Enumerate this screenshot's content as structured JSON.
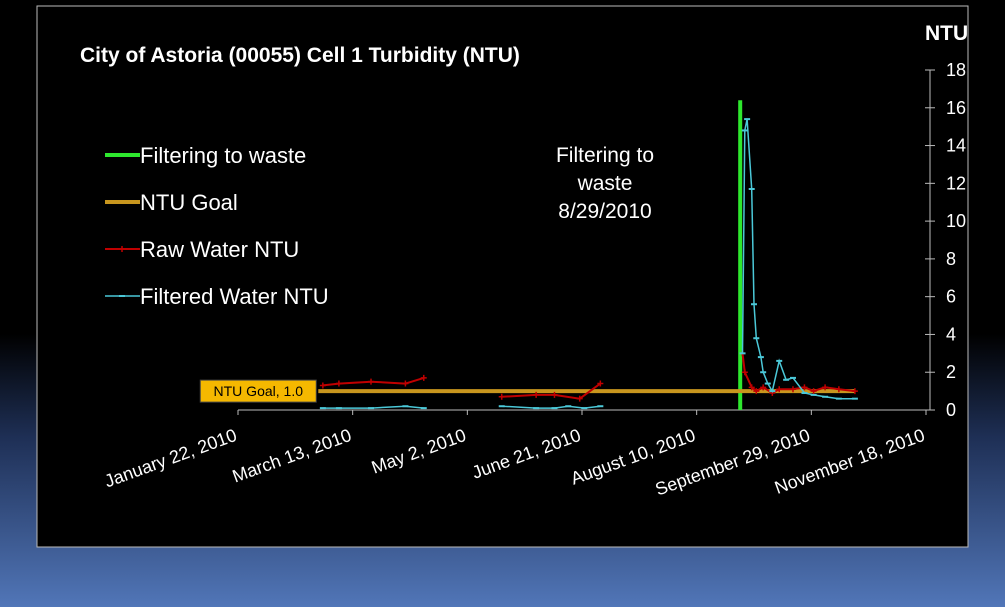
{
  "chart_data": {
    "type": "line",
    "title": "City of Astoria (00055) Cell 1 Turbidity (NTU)",
    "y_label": "NTU",
    "annotation": [
      "Filtering to",
      "waste",
      "8/29/2010"
    ],
    "xlim": [
      "2010-01-22",
      "2010-11-18"
    ],
    "xticks": [
      {
        "value": "2010-01-22",
        "label": "January 22, 2010"
      },
      {
        "value": "2010-03-13",
        "label": "March 13, 2010"
      },
      {
        "value": "2010-05-02",
        "label": "May 2, 2010"
      },
      {
        "value": "2010-06-21",
        "label": "June 21, 2010"
      },
      {
        "value": "2010-08-10",
        "label": "August 10, 2010"
      },
      {
        "value": "2010-09-29",
        "label": "September 29, 2010"
      },
      {
        "value": "2010-11-18",
        "label": "November 18, 2010"
      }
    ],
    "ylim": [
      0,
      18
    ],
    "yticks": [
      0,
      2,
      4,
      6,
      8,
      10,
      12,
      14,
      16,
      18
    ],
    "y_axis_side": "right",
    "legend": "upper left",
    "series": [
      {
        "name": "Filtering to waste",
        "color": "#2ee82e",
        "marker": "none",
        "width": 4,
        "x": [
          "2010-08-29",
          "2010-08-29"
        ],
        "values": [
          0,
          16.4
        ]
      },
      {
        "name": "NTU Goal",
        "color": "#c8961e",
        "marker": "none",
        "width": 4,
        "x": [
          "2010-02-26",
          "2010-10-18"
        ],
        "values": [
          1,
          1
        ],
        "value_labels": [
          "NTU Goal, 1.0",
          null
        ]
      },
      {
        "name": "Raw Water NTU",
        "color": "#c00000",
        "marker": "plus",
        "width": 2,
        "x": [
          "2010-02-28",
          "2010-03-07",
          "2010-03-21",
          "2010-04-05",
          "2010-04-13",
          "2010-05-01",
          "2010-05-17",
          "2010-06-01",
          "2010-06-09",
          "2010-06-20",
          "2010-06-29",
          "2010-07-20",
          "2010-08-30",
          "2010-08-31",
          "2010-09-03",
          "2010-09-05",
          "2010-09-08",
          "2010-09-12",
          "2010-09-15",
          "2010-09-21",
          "2010-09-26",
          "2010-09-30",
          "2010-10-05",
          "2010-10-11",
          "2010-10-18"
        ],
        "values": [
          1.3,
          1.4,
          1.5,
          1.4,
          1.7,
          null,
          0.7,
          0.8,
          0.8,
          0.6,
          1.4,
          null,
          3.0,
          2.0,
          1.2,
          1.0,
          1.2,
          0.9,
          1.1,
          1.1,
          1.2,
          1.0,
          1.2,
          1.1,
          1.0
        ]
      },
      {
        "name": "Filtered Water NTU",
        "color": "#4bc8d8",
        "marker": "dash",
        "width": 1.5,
        "x": [
          "2010-02-28",
          "2010-03-07",
          "2010-03-21",
          "2010-04-05",
          "2010-04-13",
          "2010-05-01",
          "2010-05-17",
          "2010-06-01",
          "2010-06-09",
          "2010-06-15",
          "2010-06-22",
          "2010-06-29",
          "2010-07-20",
          "2010-08-30",
          "2010-08-31",
          "2010-09-01",
          "2010-09-03",
          "2010-09-04",
          "2010-09-05",
          "2010-09-07",
          "2010-09-08",
          "2010-09-10",
          "2010-09-12",
          "2010-09-15",
          "2010-09-18",
          "2010-09-21",
          "2010-09-26",
          "2010-09-30",
          "2010-10-05",
          "2010-10-11",
          "2010-10-18"
        ],
        "values": [
          0.1,
          0.1,
          0.1,
          0.2,
          0.1,
          null,
          0.2,
          0.1,
          0.1,
          0.2,
          0.1,
          0.2,
          null,
          3.0,
          14.8,
          15.4,
          11.7,
          5.6,
          3.8,
          2.8,
          2.0,
          1.4,
          1.0,
          2.6,
          1.6,
          1.7,
          0.9,
          0.8,
          0.7,
          0.6,
          0.6
        ]
      }
    ]
  }
}
